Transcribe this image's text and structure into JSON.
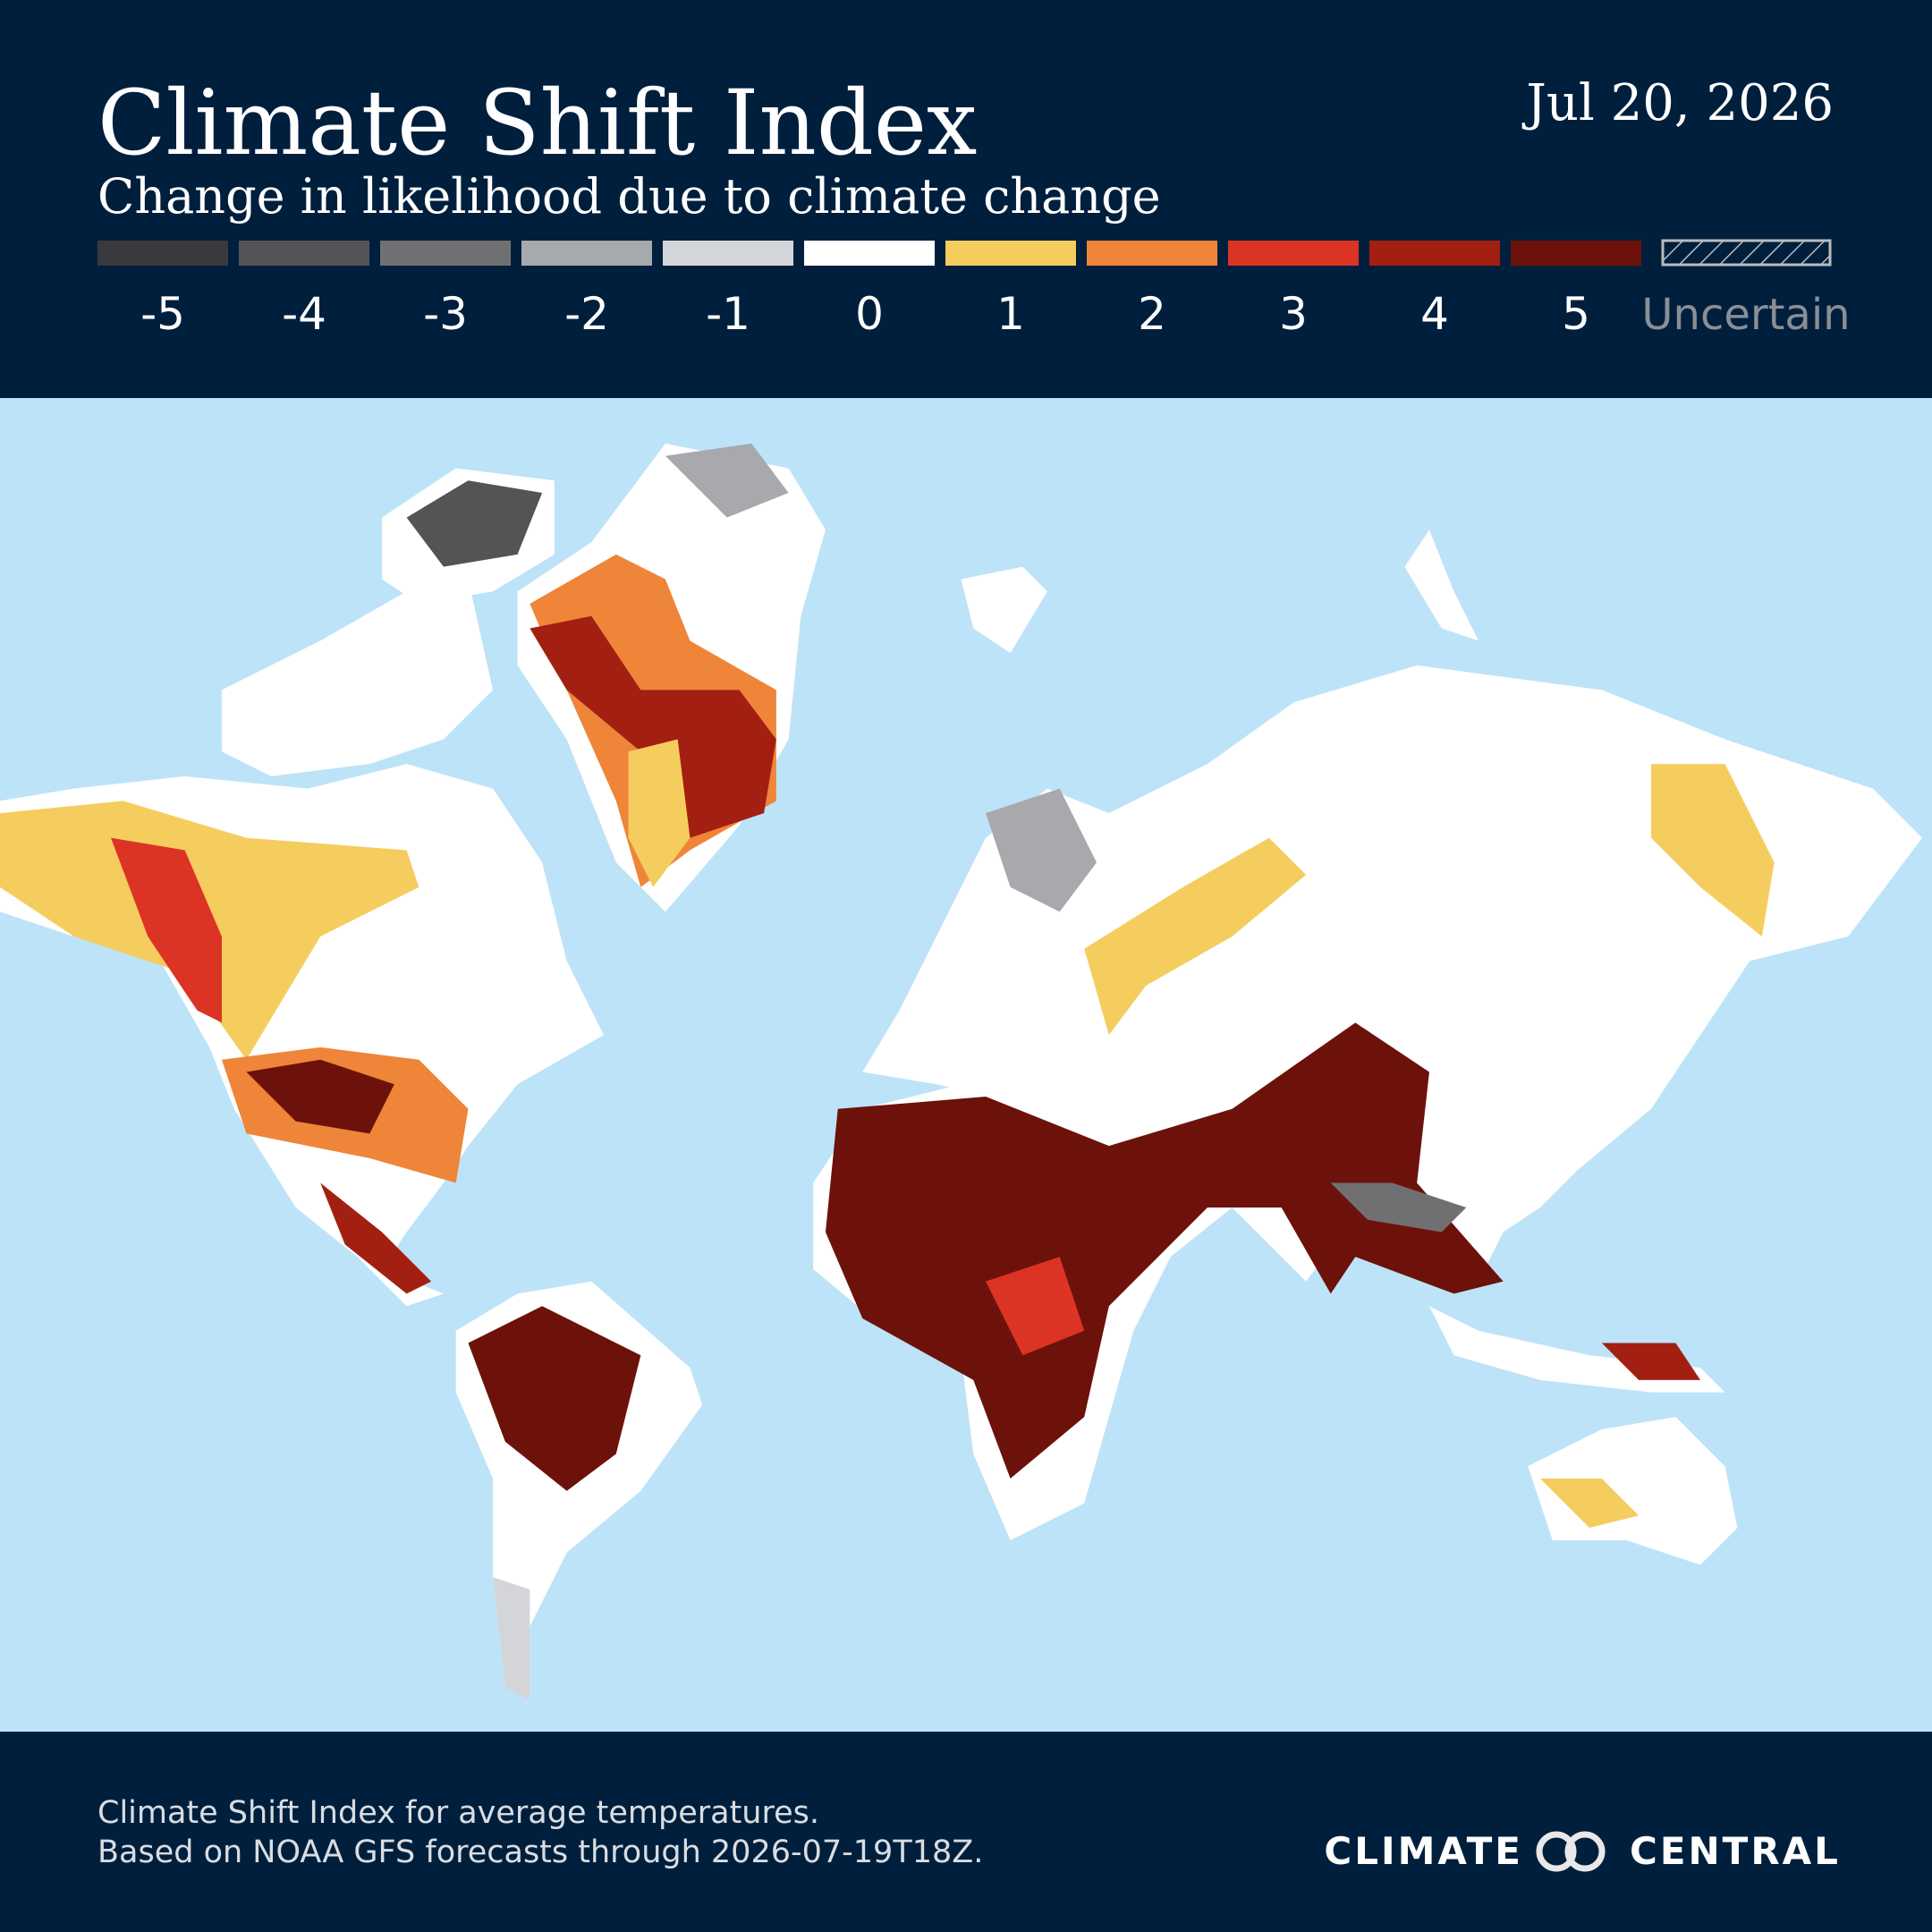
{
  "header": {
    "title": "Climate Shift Index",
    "subtitle": "Change in likelihood due to climate change",
    "date": "Jul 20, 2026"
  },
  "legend": {
    "items": [
      {
        "label": -5,
        "color": "#3a3a3c"
      },
      {
        "label": -4,
        "color": "#545456"
      },
      {
        "label": -3,
        "color": "#707072"
      },
      {
        "label": -2,
        "color": "#a7a9ad"
      },
      {
        "label": -1,
        "color": "#d4d5d8"
      },
      {
        "label": 0,
        "color": "#ffffff"
      },
      {
        "label": 1,
        "color": "#f5cd5e"
      },
      {
        "label": 2,
        "color": "#ee8539"
      },
      {
        "label": 3,
        "color": "#dc3424"
      },
      {
        "label": 4,
        "color": "#a31f12"
      },
      {
        "label": 5,
        "color": "#6c120a"
      }
    ],
    "uncertain": "Uncertain"
  },
  "footer": {
    "lines": [
      "Climate Shift Index for average temperatures.",
      "Based on NOAA GFS forecasts through 2026-07-19T18Z."
    ],
    "logo": {
      "left": "CLIMATE",
      "right": "CENTRAL"
    }
  }
}
